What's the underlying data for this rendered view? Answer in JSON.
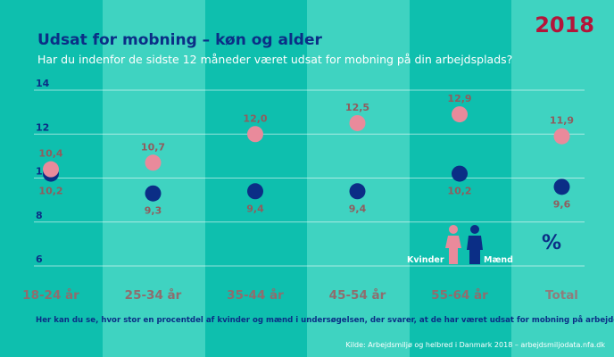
{
  "title": "Udsat for mobning – køn og alder",
  "subtitle": "Har du indenfor de sidste 12 måneder været udsat for mobning på din arbejdsplads?",
  "year": "2018",
  "footnote": "Her kan du se, hvor stor en procentdel af kvinder og mænd i undersøgelsen, der svarer, at de har været udsat for mobning på arbejdet",
  "source": "Kilde: Arbejdsmiljø og helbred i Danmark 2018 – arbejdsmiljodata.nfa.dk",
  "legend": {
    "female": "Kvinder",
    "male": "Mænd"
  },
  "unit_symbol": "%",
  "colors": {
    "female": "#e98a9b",
    "male": "#0b2e86",
    "accent": "#b3153a",
    "band_light": "#3fd3c1",
    "band_dark": "#00b5a4",
    "female_label": "#8f5d5e"
  },
  "chart_data": {
    "type": "scatter",
    "categories": [
      "18-24 år",
      "25-34 år",
      "35-44 år",
      "45-54 år",
      "55-64 år",
      "Total"
    ],
    "ylim": [
      6,
      14
    ],
    "yticks": [
      "6",
      "8",
      "10",
      "12",
      "14"
    ],
    "grid": true,
    "series": [
      {
        "name": "Kvinder",
        "values": [
          10.4,
          10.7,
          12.0,
          12.5,
          12.9,
          11.9
        ],
        "labels": [
          "10,4",
          "10,7",
          "12,0",
          "12,5",
          "12,9",
          "11,9"
        ]
      },
      {
        "name": "Mænd",
        "values": [
          10.2,
          9.3,
          9.4,
          9.4,
          10.2,
          9.6
        ],
        "labels": [
          "10,2",
          "9,3",
          "9,4",
          "9,4",
          "10,2",
          "9,6"
        ]
      }
    ]
  }
}
